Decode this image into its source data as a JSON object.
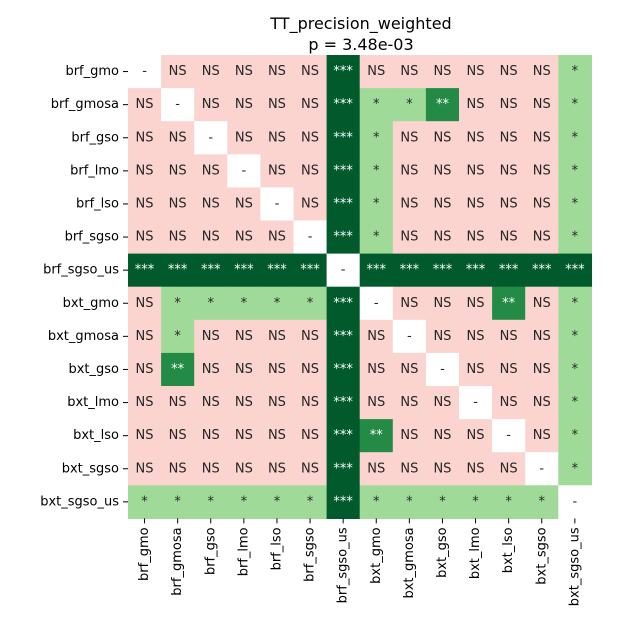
{
  "chart_data": {
    "type": "heatmap",
    "title": "TT_precision_weighted",
    "subtitle": "p = 3.48e-03",
    "labels": [
      "brf_gmo",
      "brf_gmosa",
      "brf_gso",
      "brf_lmo",
      "brf_lso",
      "brf_sgso",
      "brf_sgso_us",
      "bxt_gmo",
      "bxt_gmosa",
      "bxt_gso",
      "bxt_lmo",
      "bxt_lso",
      "bxt_sgso",
      "bxt_sgso_us"
    ],
    "matrix": [
      [
        "-",
        "NS",
        "NS",
        "NS",
        "NS",
        "NS",
        "***",
        "NS",
        "NS",
        "NS",
        "NS",
        "NS",
        "NS",
        "*"
      ],
      [
        "NS",
        "-",
        "NS",
        "NS",
        "NS",
        "NS",
        "***",
        "*",
        "*",
        "**",
        "NS",
        "NS",
        "NS",
        "*"
      ],
      [
        "NS",
        "NS",
        "-",
        "NS",
        "NS",
        "NS",
        "***",
        "*",
        "NS",
        "NS",
        "NS",
        "NS",
        "NS",
        "*"
      ],
      [
        "NS",
        "NS",
        "NS",
        "-",
        "NS",
        "NS",
        "***",
        "*",
        "NS",
        "NS",
        "NS",
        "NS",
        "NS",
        "*"
      ],
      [
        "NS",
        "NS",
        "NS",
        "NS",
        "-",
        "NS",
        "***",
        "*",
        "NS",
        "NS",
        "NS",
        "NS",
        "NS",
        "*"
      ],
      [
        "NS",
        "NS",
        "NS",
        "NS",
        "NS",
        "-",
        "***",
        "*",
        "NS",
        "NS",
        "NS",
        "NS",
        "NS",
        "*"
      ],
      [
        "***",
        "***",
        "***",
        "***",
        "***",
        "***",
        "-",
        "***",
        "***",
        "***",
        "***",
        "***",
        "***",
        "***"
      ],
      [
        "NS",
        "*",
        "*",
        "*",
        "*",
        "*",
        "***",
        "-",
        "NS",
        "NS",
        "NS",
        "**",
        "NS",
        "*"
      ],
      [
        "NS",
        "*",
        "NS",
        "NS",
        "NS",
        "NS",
        "***",
        "NS",
        "-",
        "NS",
        "NS",
        "NS",
        "NS",
        "*"
      ],
      [
        "NS",
        "**",
        "NS",
        "NS",
        "NS",
        "NS",
        "***",
        "NS",
        "NS",
        "-",
        "NS",
        "NS",
        "NS",
        "*"
      ],
      [
        "NS",
        "NS",
        "NS",
        "NS",
        "NS",
        "NS",
        "***",
        "NS",
        "NS",
        "NS",
        "-",
        "NS",
        "NS",
        "*"
      ],
      [
        "NS",
        "NS",
        "NS",
        "NS",
        "NS",
        "NS",
        "***",
        "**",
        "NS",
        "NS",
        "NS",
        "-",
        "NS",
        "*"
      ],
      [
        "NS",
        "NS",
        "NS",
        "NS",
        "NS",
        "NS",
        "***",
        "NS",
        "NS",
        "NS",
        "NS",
        "NS",
        "-",
        "*"
      ],
      [
        "*",
        "*",
        "*",
        "*",
        "*",
        "*",
        "***",
        "*",
        "*",
        "*",
        "*",
        "*",
        "*",
        "-"
      ]
    ],
    "colors": {
      "NS": "#fbd4d0",
      "*": "#a0da98",
      "**": "#238b45",
      "***": "#005a2b",
      "-": "#ffffff"
    },
    "text_colors": {
      "NS": "#262626",
      "*": "#262626",
      "**": "#ffffff",
      "***": "#ffffff",
      "-": "#262626"
    }
  }
}
